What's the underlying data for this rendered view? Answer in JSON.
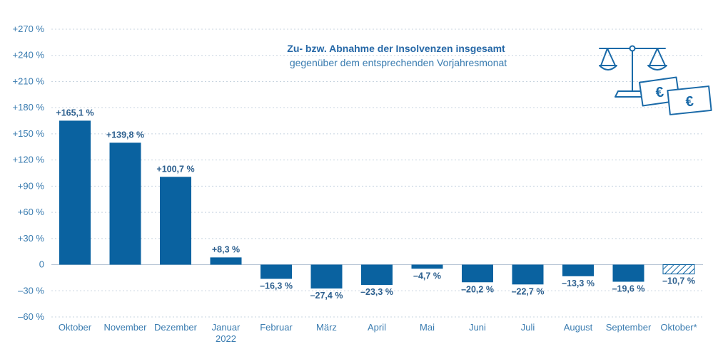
{
  "chart_data": {
    "type": "bar",
    "title": "Zu- bzw. Abnahme der Insolvenzen insgesamt",
    "subtitle": "gegenüber dem entsprechenden Vorjahresmonat",
    "categories": [
      "Oktober",
      "November",
      "Dezember",
      "Januar\n2022",
      "Februar",
      "März",
      "April",
      "Mai",
      "Juni",
      "Juli",
      "August",
      "September",
      "Oktober*"
    ],
    "values": [
      165.1,
      139.8,
      100.7,
      8.3,
      -16.3,
      -27.4,
      -23.3,
      -4.7,
      -20.2,
      -22.7,
      -13.3,
      -19.6,
      -10.7
    ],
    "value_labels": [
      "+165,1 %",
      "+139,8 %",
      "+100,7 %",
      "+8,3 %",
      "–16,3 %",
      "–27,4 %",
      "–23,3 %",
      "–4,7 %",
      "–20,2 %",
      "–22,7 %",
      "–13,3 %",
      "–19,6 %",
      "–10,7 %"
    ],
    "hatched": [
      false,
      false,
      false,
      false,
      false,
      false,
      false,
      false,
      false,
      false,
      false,
      false,
      true
    ],
    "y_ticks": [
      270,
      240,
      210,
      180,
      150,
      120,
      90,
      60,
      30,
      0,
      -30,
      -60
    ],
    "y_tick_labels": [
      "+270 %",
      "+240 %",
      "+210 %",
      "+180 %",
      "+150 %",
      "+120 %",
      "+90 %",
      "+60 %",
      "+30 %",
      "0",
      "–30 %",
      "–60 %"
    ],
    "ylim": [
      -60,
      270
    ],
    "grid": true,
    "colors": {
      "bar": "#0a62a0",
      "grid": "#c8d4e0",
      "text": "#3a7cb0",
      "title": "#2668a7",
      "icon": "#1a6aa8"
    }
  },
  "icon": {
    "name": "scale-with-euro-notes-icon",
    "currency_symbol": "€"
  }
}
